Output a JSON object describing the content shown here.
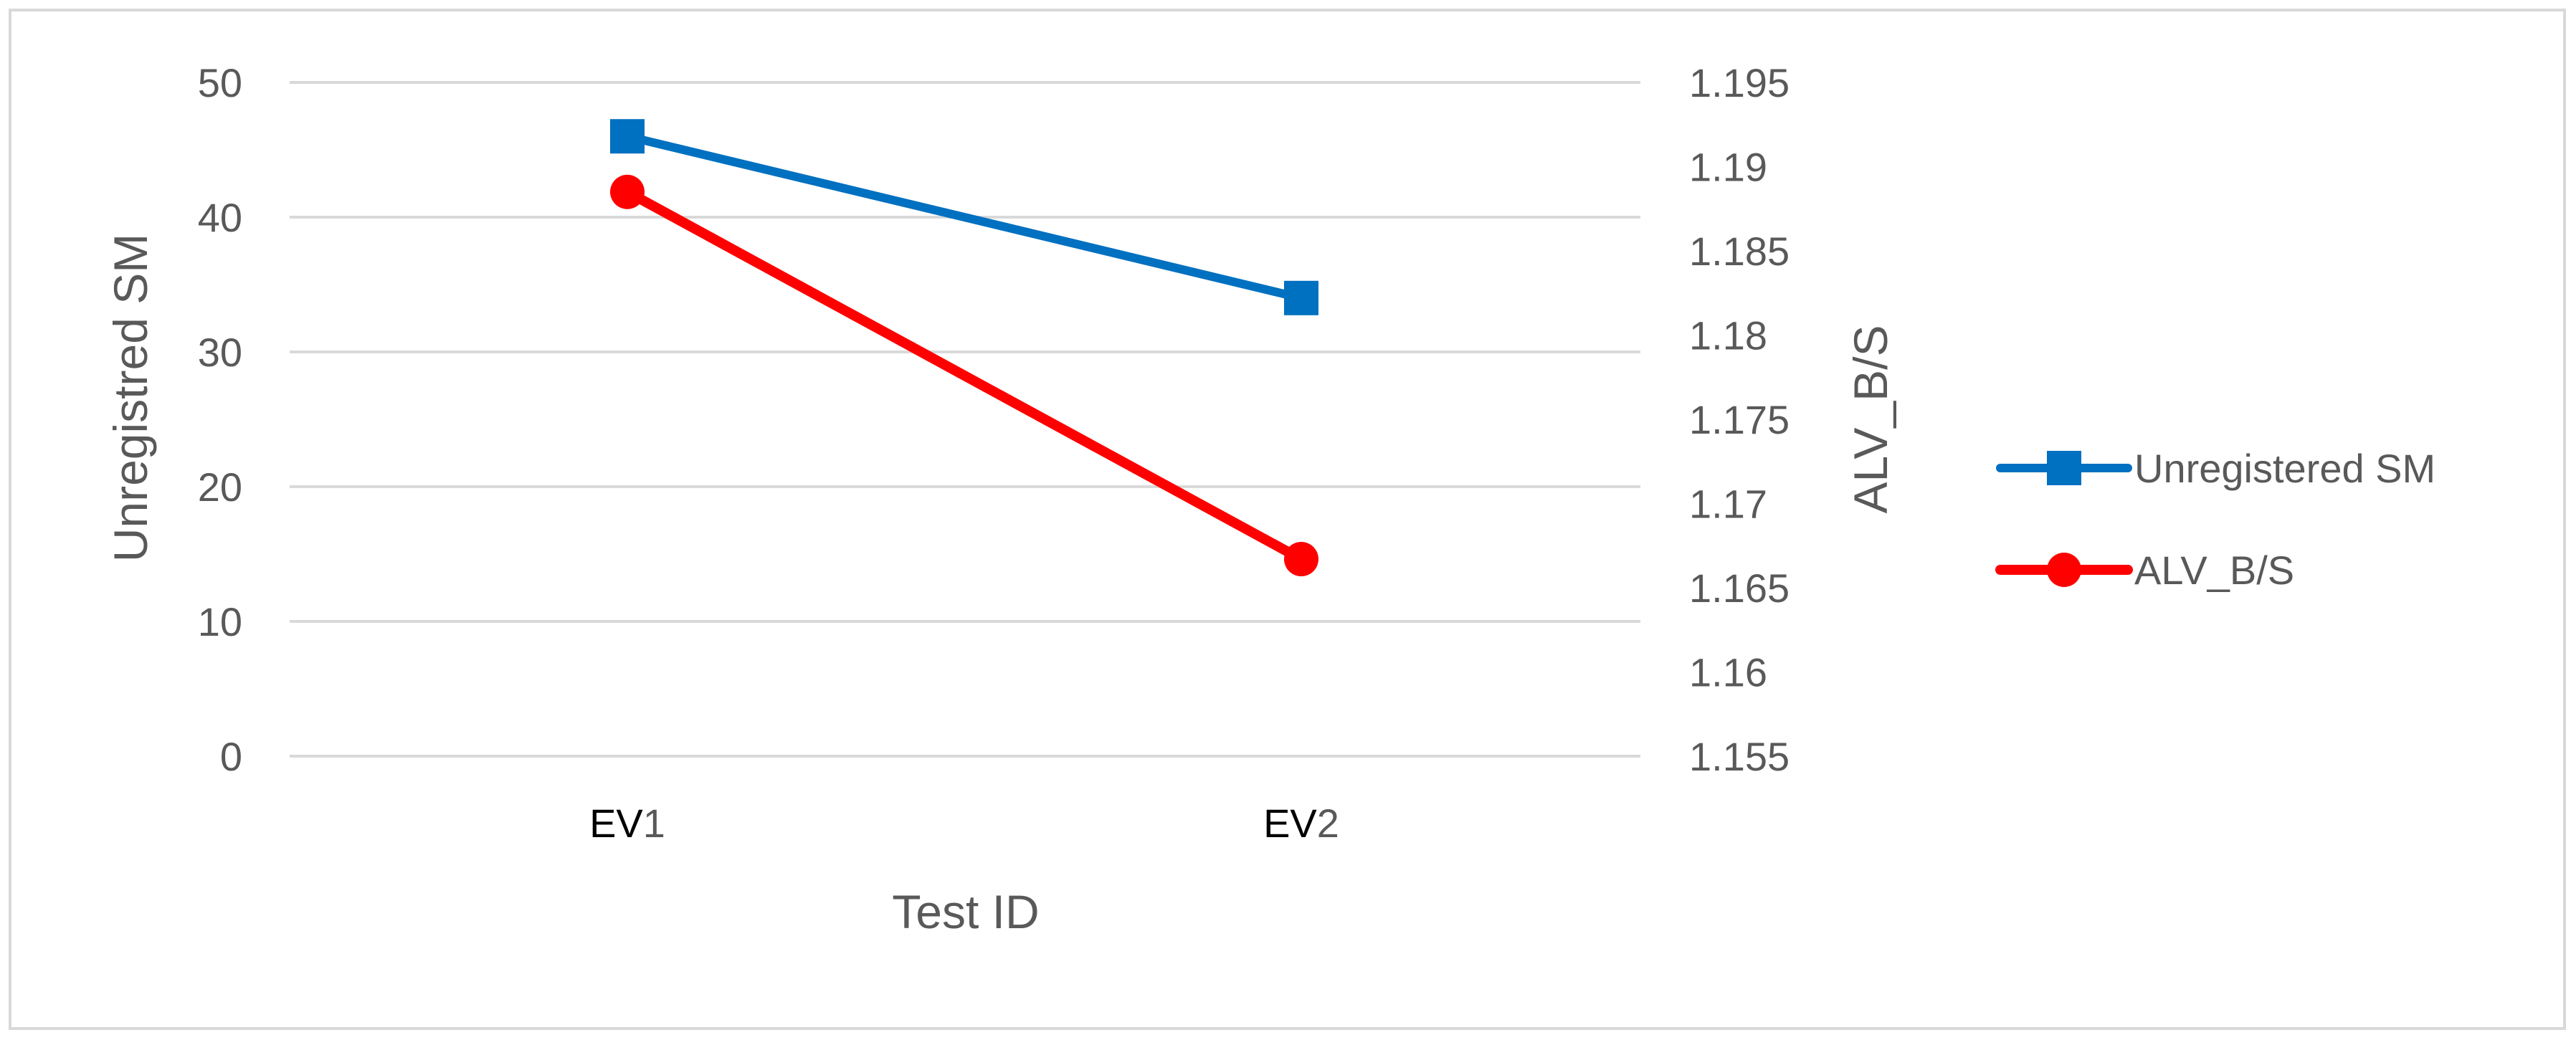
{
  "chart_data": {
    "type": "line",
    "categories": [
      {
        "prefix": "EV",
        "suffix": "1"
      },
      {
        "prefix": "EV",
        "suffix": "2"
      }
    ],
    "xlabel": "Test ID",
    "ylabel_left": "Unregistred SM",
    "ylabel_right": "ALV_B/S",
    "y_left": {
      "range": [
        0,
        50
      ],
      "ticks": [
        "0",
        "10",
        "20",
        "30",
        "40",
        "50"
      ]
    },
    "y_right": {
      "range": [
        1.155,
        1.195
      ],
      "ticks": [
        "1.155",
        "1.16",
        "1.165",
        "1.17",
        "1.175",
        "1.18",
        "1.185",
        "1.19",
        "1.195"
      ]
    },
    "grid": true,
    "legend_position": "right",
    "series": [
      {
        "name": "Unregistered SM",
        "axis": "left",
        "color": "#0070C0",
        "marker": "square",
        "values": [
          46,
          34
        ]
      },
      {
        "name": "ALV_B/S",
        "axis": "right",
        "color": "#FF0000",
        "marker": "circle",
        "values": [
          1.1885,
          1.1667
        ]
      }
    ]
  }
}
